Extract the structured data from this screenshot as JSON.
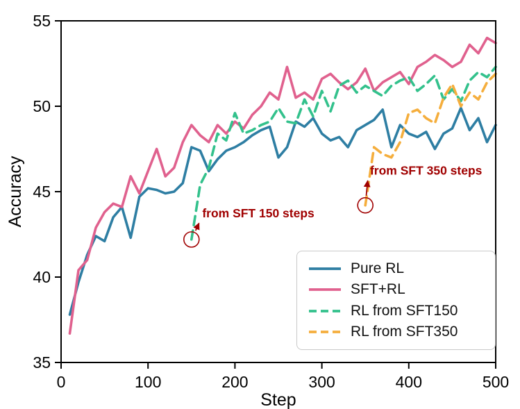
{
  "chart_data": {
    "type": "line",
    "title": "",
    "xlabel": "Step",
    "ylabel": "Accuracy",
    "xlim": [
      0,
      500
    ],
    "ylim": [
      35,
      55
    ],
    "xticks": [
      0,
      100,
      200,
      300,
      400,
      500
    ],
    "yticks": [
      35,
      40,
      45,
      50,
      55
    ],
    "grid": false,
    "legend_position": "lower right",
    "series": [
      {
        "name": "Pure RL",
        "color": "#2e7ea3",
        "dash": "solid",
        "x": [
          10,
          20,
          30,
          40,
          50,
          60,
          70,
          80,
          90,
          100,
          110,
          120,
          130,
          140,
          150,
          160,
          170,
          180,
          190,
          200,
          210,
          220,
          230,
          240,
          250,
          260,
          270,
          280,
          290,
          300,
          310,
          320,
          330,
          340,
          350,
          360,
          370,
          380,
          390,
          400,
          410,
          420,
          430,
          440,
          450,
          460,
          470,
          480,
          490,
          500
        ],
        "y": [
          37.8,
          39.7,
          41.3,
          42.4,
          42.1,
          43.5,
          44.1,
          42.3,
          44.7,
          45.2,
          45.1,
          44.9,
          45.0,
          45.5,
          47.6,
          47.4,
          46.2,
          46.9,
          47.4,
          47.6,
          47.9,
          48.3,
          48.6,
          48.8,
          47.0,
          47.6,
          49.1,
          48.8,
          49.3,
          48.4,
          48.0,
          48.2,
          47.6,
          48.6,
          48.9,
          49.2,
          49.8,
          47.6,
          48.9,
          48.4,
          48.2,
          48.5,
          47.5,
          48.4,
          48.7,
          49.9,
          48.6,
          49.3,
          47.9,
          48.9
        ]
      },
      {
        "name": "SFT+RL",
        "color": "#e0618e",
        "dash": "solid",
        "x": [
          10,
          20,
          30,
          40,
          50,
          60,
          70,
          80,
          90,
          100,
          110,
          120,
          130,
          140,
          150,
          160,
          170,
          180,
          190,
          200,
          210,
          220,
          230,
          240,
          250,
          260,
          270,
          280,
          290,
          300,
          310,
          320,
          330,
          340,
          350,
          360,
          370,
          380,
          390,
          400,
          410,
          420,
          430,
          440,
          450,
          460,
          470,
          480,
          490,
          500
        ],
        "y": [
          36.7,
          40.4,
          41.0,
          42.9,
          43.8,
          44.3,
          44.1,
          45.9,
          44.9,
          46.2,
          47.5,
          45.9,
          46.4,
          47.9,
          48.9,
          48.3,
          47.9,
          48.9,
          48.4,
          49.1,
          48.7,
          49.5,
          50.0,
          50.8,
          50.4,
          52.3,
          50.5,
          50.8,
          50.4,
          51.6,
          51.9,
          51.4,
          51.0,
          51.4,
          52.2,
          50.9,
          51.4,
          51.7,
          52.0,
          51.3,
          52.3,
          52.6,
          53.0,
          52.7,
          52.3,
          52.6,
          53.6,
          53.1,
          54.0,
          53.7
        ]
      },
      {
        "name": "RL from SFT150",
        "color": "#33c18c",
        "dash": "dashed",
        "x": [
          150,
          160,
          170,
          180,
          190,
          200,
          210,
          220,
          230,
          240,
          250,
          260,
          270,
          280,
          290,
          300,
          310,
          320,
          330,
          340,
          350,
          360,
          370,
          380,
          390,
          400,
          410,
          420,
          430,
          440,
          450,
          460,
          470,
          480,
          490,
          500
        ],
        "y": [
          42.2,
          45.4,
          46.4,
          48.4,
          48.0,
          49.6,
          48.4,
          48.6,
          48.9,
          49.1,
          49.9,
          49.1,
          49.0,
          50.4,
          49.4,
          50.9,
          49.7,
          51.2,
          51.5,
          50.8,
          51.2,
          50.9,
          50.6,
          51.2,
          51.5,
          51.7,
          50.9,
          51.3,
          51.8,
          50.4,
          51.0,
          50.3,
          51.5,
          52.0,
          51.7,
          52.3
        ]
      },
      {
        "name": "RL from SFT350",
        "color": "#f5ae3d",
        "dash": "dashed",
        "x": [
          350,
          360,
          370,
          380,
          390,
          400,
          410,
          420,
          430,
          440,
          450,
          460,
          470,
          480,
          490,
          500
        ],
        "y": [
          44.2,
          47.6,
          47.2,
          47.0,
          47.9,
          49.6,
          49.8,
          49.3,
          49.0,
          50.5,
          51.3,
          50.0,
          50.8,
          50.4,
          51.4,
          51.9
        ]
      }
    ],
    "annotations": [
      {
        "text": "from SFT 150 steps",
        "color": "#a00000",
        "point": [
          150,
          42.2
        ],
        "text_pos": [
          160,
          43.3
        ]
      },
      {
        "text": "from SFT 350 steps",
        "color": "#a00000",
        "point": [
          350,
          44.2
        ],
        "text_pos": [
          353,
          45.8
        ]
      }
    ]
  }
}
